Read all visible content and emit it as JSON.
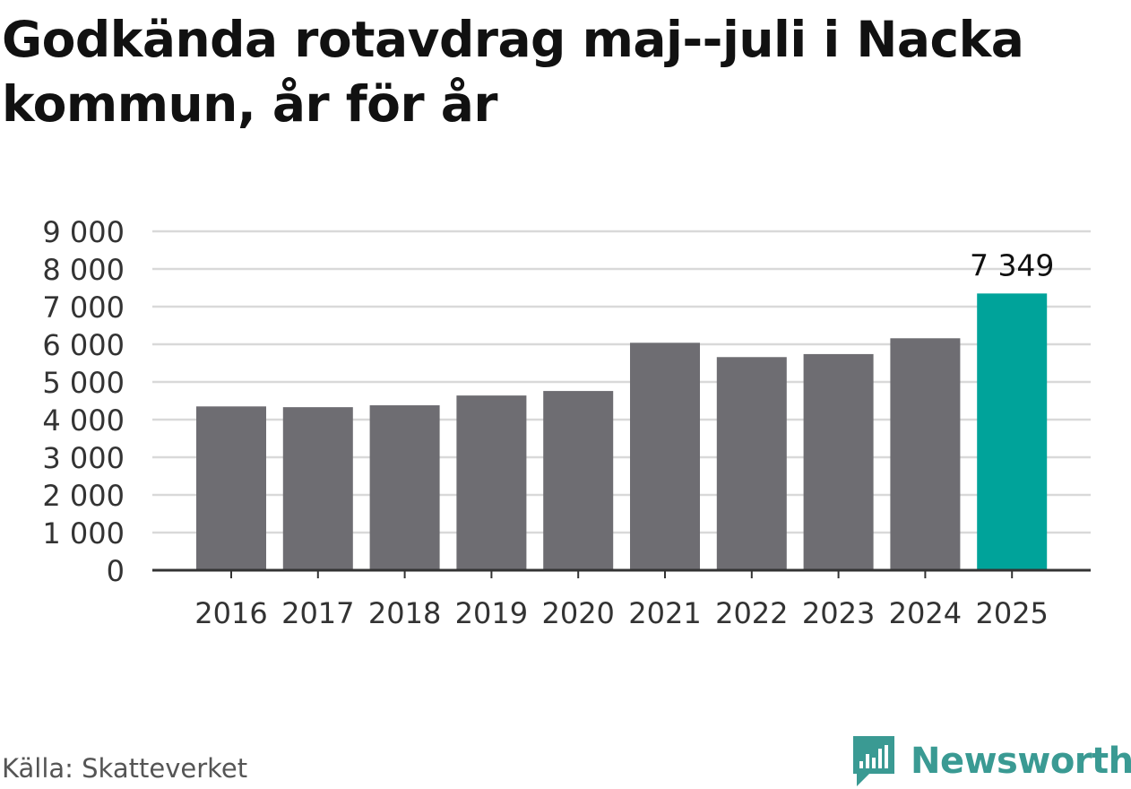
{
  "title": "Godkända rotavdrag maj--juli i Nacka kommun, år för år",
  "source": "Källa: Skatteverket",
  "brand": {
    "name": "Newsworthy",
    "icon": "newsworthy-logo-icon",
    "color": "#3a9a93"
  },
  "colors": {
    "bar": "#6e6d72",
    "highlight": "#00a39a",
    "grid": "#d9d9d9",
    "axis": "#333333",
    "tick_text": "#333333"
  },
  "chart_data": {
    "type": "bar",
    "title": "Godkända rotavdrag maj--juli i Nacka kommun, år för år",
    "xlabel": "",
    "ylabel": "",
    "categories": [
      "2016",
      "2017",
      "2018",
      "2019",
      "2020",
      "2021",
      "2022",
      "2023",
      "2024",
      "2025"
    ],
    "values": [
      4350,
      4330,
      4380,
      4640,
      4760,
      6040,
      5660,
      5740,
      6160,
      7349
    ],
    "highlight_index": 9,
    "data_labels": [
      {
        "index": 9,
        "text": "7 349"
      }
    ],
    "ylim": [
      0,
      9000
    ],
    "yticks": [
      0,
      1000,
      2000,
      3000,
      4000,
      5000,
      6000,
      7000,
      8000,
      9000
    ],
    "ytick_labels": [
      "0",
      "1 000",
      "2 000",
      "3 000",
      "4 000",
      "5 000",
      "6 000",
      "7 000",
      "8 000",
      "9 000"
    ],
    "grid": true,
    "legend": "none"
  }
}
